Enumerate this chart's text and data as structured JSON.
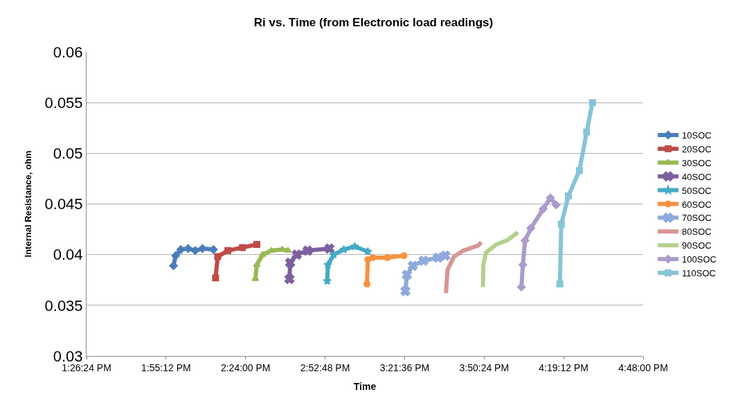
{
  "chart_data": {
    "type": "line",
    "title": "Ri vs. Time (from Electronic load readings)",
    "xlabel": "Time",
    "ylabel": "Internal Resistance, ohm",
    "xlim": [
      13.44,
      16.8
    ],
    "xticks": [
      {
        "value": 13.44,
        "label": "1:26:24 PM"
      },
      {
        "value": 13.92,
        "label": "1:55:12 PM"
      },
      {
        "value": 14.4,
        "label": "2:24:00 PM"
      },
      {
        "value": 14.88,
        "label": "2:52:48 PM"
      },
      {
        "value": 15.36,
        "label": "3:21:36 PM"
      },
      {
        "value": 15.84,
        "label": "3:50:24 PM"
      },
      {
        "value": 16.32,
        "label": "4:19:12 PM"
      },
      {
        "value": 16.8,
        "label": "4:48:00 PM"
      }
    ],
    "ylim": [
      0.03,
      0.06
    ],
    "yticks": [
      0.03,
      0.035,
      0.04,
      0.045,
      0.05,
      0.055,
      0.06
    ],
    "grid": "y",
    "legend": "right",
    "series": [
      {
        "name": "10SOC",
        "color": "#4a7ebb",
        "marker": "diamond",
        "x": [
          13.965,
          13.978,
          14.009,
          14.053,
          14.096,
          14.14,
          14.206
        ],
        "values": [
          0.0389,
          0.0399,
          0.0405,
          0.0406,
          0.0404,
          0.0406,
          0.0405
        ]
      },
      {
        "name": "20SOC",
        "color": "#be4b48",
        "marker": "square",
        "x": [
          14.219,
          14.232,
          14.293,
          14.381,
          14.468
        ],
        "values": [
          0.0377,
          0.0398,
          0.0404,
          0.0407,
          0.041
        ]
      },
      {
        "name": "30SOC",
        "color": "#98b954",
        "marker": "triangle",
        "x": [
          14.459,
          14.468,
          14.503,
          14.556,
          14.621,
          14.656
        ],
        "values": [
          0.0376,
          0.039,
          0.04,
          0.0404,
          0.0405,
          0.0404
        ]
      },
      {
        "name": "40SOC",
        "color": "#7d60a0",
        "marker": "cross",
        "x": [
          14.665,
          14.669,
          14.709,
          14.774,
          14.906
        ],
        "values": [
          0.0376,
          0.0392,
          0.04,
          0.0404,
          0.0406
        ]
      },
      {
        "name": "50SOC",
        "color": "#46aac5",
        "marker": "star",
        "x": [
          14.893,
          14.897,
          14.932,
          14.993,
          15.059,
          15.138
        ],
        "values": [
          0.0374,
          0.039,
          0.04,
          0.0405,
          0.0408,
          0.0403
        ]
      },
      {
        "name": "60SOC",
        "color": "#f69240",
        "marker": "circle",
        "x": [
          15.133,
          15.138,
          15.168,
          15.256,
          15.356
        ],
        "values": [
          0.0371,
          0.0395,
          0.0397,
          0.0397,
          0.0399
        ]
      },
      {
        "name": "70SOC",
        "color": "#8faadc",
        "marker": "cross",
        "x": [
          15.365,
          15.374,
          15.409,
          15.474,
          15.562,
          15.606
        ],
        "values": [
          0.0364,
          0.038,
          0.0389,
          0.0394,
          0.0397,
          0.0399
        ]
      },
      {
        "name": "80SOC",
        "color": "#d99694",
        "marker": "none",
        "x": [
          15.61,
          15.619,
          15.658,
          15.715,
          15.803,
          15.824
        ],
        "values": [
          0.0362,
          0.0385,
          0.0398,
          0.0404,
          0.0409,
          0.0412
        ]
      },
      {
        "name": "90SOC",
        "color": "#b5d08f",
        "marker": "none",
        "x": [
          15.833,
          15.835,
          15.851,
          15.913,
          15.978,
          16.044
        ],
        "values": [
          0.0368,
          0.039,
          0.0402,
          0.041,
          0.0414,
          0.0422
        ]
      },
      {
        "name": "100SOC",
        "color": "#ab9ccb",
        "marker": "diamond",
        "x": [
          16.065,
          16.074,
          16.087,
          16.122,
          16.196,
          16.24,
          16.275
        ],
        "values": [
          0.0368,
          0.039,
          0.0414,
          0.0426,
          0.0445,
          0.0456,
          0.0449
        ]
      },
      {
        "name": "110SOC",
        "color": "#86c4d8",
        "marker": "square",
        "x": [
          16.297,
          16.306,
          16.349,
          16.415,
          16.459,
          16.494
        ],
        "values": [
          0.0371,
          0.043,
          0.0458,
          0.0483,
          0.0521,
          0.055
        ]
      }
    ]
  }
}
